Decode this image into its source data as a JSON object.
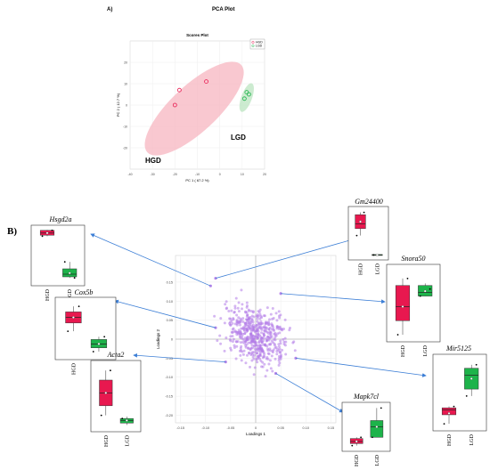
{
  "panel_a": {
    "label": "A)",
    "title": "PCA Plot"
  },
  "panel_b": {
    "label": "B)"
  },
  "colors": {
    "hgd": "#e8184f",
    "lgd": "#1db34a",
    "hgd_ellipse": "#f7b6c0",
    "lgd_ellipse": "#bfe6c4",
    "loading_point": "#b27be8",
    "arrow": "#3d7fd6"
  },
  "chart_data": [
    {
      "type": "scatter",
      "title": "Scores Plot",
      "xlabel": "PC 1 ( 67.2 %)",
      "ylabel": "PC 2 ( 12.7 %)",
      "xlim": [
        -40,
        20
      ],
      "ylim": [
        -30,
        30
      ],
      "xticks": [
        -40,
        -30,
        -20,
        -10,
        0,
        10,
        20
      ],
      "yticks": [
        -20,
        -10,
        0,
        10,
        20
      ],
      "grid": true,
      "legend_position": "top-right",
      "series": [
        {
          "name": "HGD",
          "x": [
            -20,
            -18,
            -6
          ],
          "y": [
            0,
            7,
            11
          ]
        },
        {
          "name": "LGD",
          "x": [
            11,
            12,
            13
          ],
          "y": [
            3,
            6,
            5
          ]
        }
      ],
      "annotations": [
        "HGD",
        "LGD"
      ]
    },
    {
      "type": "scatter",
      "xlabel": "Loadings 1",
      "ylabel": "Loadings 2",
      "xlim": [
        -0.16,
        0.16
      ],
      "ylim": [
        -0.22,
        0.22
      ],
      "xticks": [
        -0.15,
        -0.1,
        -0.05,
        0,
        0.05,
        0.1,
        0.15
      ],
      "yticks": [
        -0.2,
        -0.15,
        -0.1,
        -0.05,
        0,
        0.05,
        0.1,
        0.15
      ],
      "xtick_labels": [
        "-0.15",
        "-0.10",
        "-0.05",
        "0",
        "0.05",
        "0.10",
        "0.15"
      ],
      "ytick_labels": [
        "-0.20",
        "-0.15",
        "-0.10",
        "-0.05",
        "0",
        "0.05",
        "0.10",
        "0.15"
      ],
      "grid": true,
      "highlighted": [
        {
          "gene": "Hsgd2a",
          "x": -0.09,
          "y": 0.14
        },
        {
          "gene": "Gm24400",
          "x": -0.08,
          "y": 0.16
        },
        {
          "gene": "Snora50",
          "x": 0.05,
          "y": 0.12
        },
        {
          "gene": "Cox5b",
          "x": -0.08,
          "y": 0.03
        },
        {
          "gene": "Acta2",
          "x": -0.06,
          "y": -0.06
        },
        {
          "gene": "Mapk7cl",
          "x": 0.04,
          "y": -0.09
        },
        {
          "gene": "Mir5125",
          "x": 0.08,
          "y": -0.05
        }
      ]
    },
    {
      "type": "box",
      "title": "Hsgd2a",
      "categories": [
        "HGD",
        "LGD"
      ],
      "boxes": [
        {
          "q1": 0.88,
          "median": 0.92,
          "q3": 0.97,
          "min": 0.86,
          "max": 0.98,
          "mean": 0.92,
          "points": [
            0.86,
            0.97
          ]
        },
        {
          "q1": 0.1,
          "median": 0.15,
          "q3": 0.25,
          "min": 0.08,
          "max": 0.38,
          "mean": 0.17,
          "points": [
            0.38,
            0.08
          ]
        }
      ]
    },
    {
      "type": "box",
      "title": "Gm24400",
      "categories": [
        "HGD",
        "LGD"
      ],
      "boxes": [
        {
          "q1": 0.6,
          "median": 0.7,
          "q3": 0.9,
          "min": 0.45,
          "max": 0.95,
          "mean": 0.75,
          "points": [
            0.45,
            0.95
          ]
        },
        {
          "q1": 0.02,
          "median": 0.03,
          "q3": 0.04,
          "min": 0.02,
          "max": 0.05,
          "mean": 0.03,
          "points": [
            0.03
          ]
        }
      ]
    },
    {
      "type": "box",
      "title": "Snora50",
      "categories": [
        "HGD",
        "LGD"
      ],
      "boxes": [
        {
          "q1": 0.25,
          "median": 0.45,
          "q3": 0.75,
          "min": 0.05,
          "max": 0.85,
          "mean": 0.45,
          "points": [
            0.05,
            0.85
          ]
        },
        {
          "q1": 0.6,
          "median": 0.65,
          "q3": 0.75,
          "min": 0.6,
          "max": 0.78,
          "mean": 0.67,
          "points": [
            0.6,
            0.7
          ]
        }
      ]
    },
    {
      "type": "box",
      "title": "Cox5b",
      "categories": [
        "HGD",
        "LGD"
      ],
      "boxes": [
        {
          "q1": 0.6,
          "median": 0.7,
          "q3": 0.8,
          "min": 0.45,
          "max": 0.9,
          "mean": 0.7,
          "points": [
            0.45,
            0.9
          ]
        },
        {
          "q1": 0.15,
          "median": 0.22,
          "q3": 0.3,
          "min": 0.08,
          "max": 0.35,
          "mean": 0.22,
          "points": [
            0.08,
            0.35
          ]
        }
      ]
    },
    {
      "type": "box",
      "title": "Acta2",
      "categories": [
        "HGD",
        "LGD"
      ],
      "boxes": [
        {
          "q1": 0.35,
          "median": 0.55,
          "q3": 0.75,
          "min": 0.2,
          "max": 0.9,
          "mean": 0.55,
          "points": [
            0.2,
            0.9
          ]
        },
        {
          "q1": 0.08,
          "median": 0.12,
          "q3": 0.15,
          "min": 0.05,
          "max": 0.18,
          "mean": 0.12,
          "points": [
            0.15
          ]
        }
      ]
    },
    {
      "type": "box",
      "title": "Mapk7cl",
      "categories": [
        "HGD",
        "LGD"
      ],
      "boxes": [
        {
          "q1": 0.1,
          "median": 0.15,
          "q3": 0.22,
          "min": 0.05,
          "max": 0.25,
          "mean": 0.15,
          "points": [
            0.05,
            0.25
          ]
        },
        {
          "q1": 0.25,
          "median": 0.5,
          "q3": 0.65,
          "min": 0.25,
          "max": 0.95,
          "mean": 0.5,
          "points": [
            0.25,
            0.95
          ]
        }
      ]
    },
    {
      "type": "box",
      "title": "Mir5125",
      "categories": [
        "HGD",
        "LGD"
      ],
      "boxes": [
        {
          "q1": 0.18,
          "median": 0.25,
          "q3": 0.28,
          "min": 0.05,
          "max": 0.3,
          "mean": 0.2,
          "points": [
            0.05,
            0.3
          ]
        },
        {
          "q1": 0.55,
          "median": 0.75,
          "q3": 0.85,
          "min": 0.45,
          "max": 0.9,
          "mean": 0.7,
          "points": [
            0.45,
            0.9
          ]
        }
      ]
    }
  ]
}
